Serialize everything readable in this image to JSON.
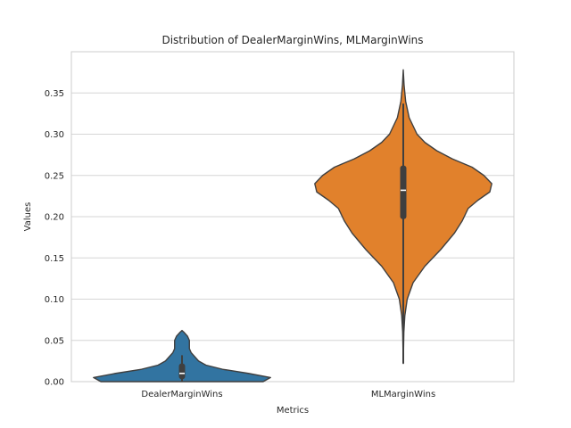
{
  "chart_data": {
    "type": "violin",
    "title": "Distribution of DealerMarginWins, MLMarginWins",
    "xlabel": "Metrics",
    "ylabel": "Values",
    "ylim": [
      0,
      0.4
    ],
    "yticks": [
      "0.00",
      "0.05",
      "0.10",
      "0.15",
      "0.20",
      "0.25",
      "0.30",
      "0.35"
    ],
    "ytick_values": [
      0,
      0.05,
      0.1,
      0.15,
      0.2,
      0.25,
      0.3,
      0.35
    ],
    "grid": "horizontal",
    "categories": [
      "DealerMarginWins",
      "MLMarginWins"
    ],
    "series": [
      {
        "color": "#3274a1",
        "min": 0.0,
        "q1": 0.003,
        "median": 0.01,
        "q3": 0.022,
        "max": 0.032,
        "kde_min": 0.0,
        "kde_max": 0.062,
        "density_profile": [
          [
            0.0,
            0.44
          ],
          [
            0.005,
            0.48
          ],
          [
            0.01,
            0.36
          ],
          [
            0.015,
            0.22
          ],
          [
            0.02,
            0.13
          ],
          [
            0.025,
            0.09
          ],
          [
            0.03,
            0.07
          ],
          [
            0.035,
            0.05
          ],
          [
            0.04,
            0.04
          ],
          [
            0.045,
            0.04
          ],
          [
            0.05,
            0.04
          ],
          [
            0.055,
            0.03
          ],
          [
            0.06,
            0.01
          ],
          [
            0.062,
            0.0
          ]
        ]
      },
      {
        "color": "#e1812c",
        "min": 0.022,
        "q1": 0.197,
        "median": 0.232,
        "q3": 0.262,
        "max": 0.337,
        "kde_min": 0.022,
        "kde_max": 0.378,
        "density_profile": [
          [
            0.022,
            0.0
          ],
          [
            0.06,
            0.003
          ],
          [
            0.08,
            0.008
          ],
          [
            0.1,
            0.02
          ],
          [
            0.12,
            0.05
          ],
          [
            0.14,
            0.11
          ],
          [
            0.16,
            0.19
          ],
          [
            0.18,
            0.26
          ],
          [
            0.195,
            0.3
          ],
          [
            0.21,
            0.33
          ],
          [
            0.22,
            0.38
          ],
          [
            0.23,
            0.44
          ],
          [
            0.24,
            0.45
          ],
          [
            0.25,
            0.41
          ],
          [
            0.26,
            0.35
          ],
          [
            0.27,
            0.25
          ],
          [
            0.28,
            0.17
          ],
          [
            0.29,
            0.11
          ],
          [
            0.3,
            0.07
          ],
          [
            0.32,
            0.03
          ],
          [
            0.34,
            0.012
          ],
          [
            0.36,
            0.004
          ],
          [
            0.378,
            0.0
          ]
        ]
      }
    ]
  }
}
